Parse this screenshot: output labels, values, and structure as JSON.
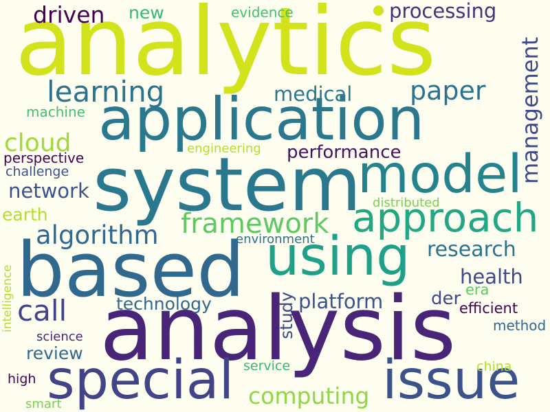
{
  "words": [
    {
      "id": "analytics",
      "text": "analytics",
      "color": "#d2e21b"
    },
    {
      "id": "analysis",
      "text": "analysis",
      "color": "#482576"
    },
    {
      "id": "system",
      "text": "system",
      "color": "#2a788e"
    },
    {
      "id": "application",
      "text": "application",
      "color": "#2a788e"
    },
    {
      "id": "based",
      "text": "based",
      "color": "#31688e"
    },
    {
      "id": "using",
      "text": "using",
      "color": "#1fa088"
    },
    {
      "id": "model",
      "text": "model",
      "color": "#25838e"
    },
    {
      "id": "approach",
      "text": "approach",
      "color": "#22a785"
    },
    {
      "id": "special",
      "text": "special",
      "color": "#414487"
    },
    {
      "id": "issue",
      "text": "issue",
      "color": "#3b528b"
    },
    {
      "id": "learning",
      "text": "learning",
      "color": "#2c738e"
    },
    {
      "id": "driven",
      "text": "driven",
      "color": "#440154"
    },
    {
      "id": "processing",
      "text": "processing",
      "color": "#46327e"
    },
    {
      "id": "paper",
      "text": "paper",
      "color": "#2c728e"
    },
    {
      "id": "management",
      "text": "management",
      "color": "#3e4989"
    },
    {
      "id": "medical",
      "text": "medical",
      "color": "#2a788e"
    },
    {
      "id": "cloud",
      "text": "cloud",
      "color": "#a0da39"
    },
    {
      "id": "performance",
      "text": "performance",
      "color": "#471063"
    },
    {
      "id": "framework",
      "text": "framework",
      "color": "#5ec962"
    },
    {
      "id": "algorithm",
      "text": "algorithm",
      "color": "#31688e"
    },
    {
      "id": "network",
      "text": "network",
      "color": "#3b528b"
    },
    {
      "id": "research",
      "text": "research",
      "color": "#2c728e"
    },
    {
      "id": "health",
      "text": "health",
      "color": "#3e4989"
    },
    {
      "id": "call",
      "text": "call",
      "color": "#414487"
    },
    {
      "id": "technology",
      "text": "technology",
      "color": "#31688e"
    },
    {
      "id": "platform",
      "text": "platform",
      "color": "#3b528b"
    },
    {
      "id": "study",
      "text": "study",
      "color": "#3e4989"
    },
    {
      "id": "computing",
      "text": "computing",
      "color": "#8fd744"
    },
    {
      "id": "review",
      "text": "review",
      "color": "#31688e"
    },
    {
      "id": "der",
      "text": "der",
      "color": "#3e4989"
    },
    {
      "id": "era",
      "text": "era",
      "color": "#5ec962"
    },
    {
      "id": "efficient",
      "text": "efficient",
      "color": "#440154"
    },
    {
      "id": "method",
      "text": "method",
      "color": "#31688e"
    },
    {
      "id": "new",
      "text": "new",
      "color": "#35b779"
    },
    {
      "id": "evidence",
      "text": "evidence",
      "color": "#44bf70"
    },
    {
      "id": "machine",
      "text": "machine",
      "color": "#44bf70"
    },
    {
      "id": "engineering",
      "text": "engineering",
      "color": "#b5de2b"
    },
    {
      "id": "perspective",
      "text": "perspective",
      "color": "#440154"
    },
    {
      "id": "challenge",
      "text": "challenge",
      "color": "#3b528b"
    },
    {
      "id": "earth",
      "text": "earth",
      "color": "#b5de2b"
    },
    {
      "id": "distributed",
      "text": "distributed",
      "color": "#7ad151"
    },
    {
      "id": "environment",
      "text": "environment",
      "color": "#2c728e"
    },
    {
      "id": "intelligence",
      "text": "intelligence",
      "color": "#b5de2b"
    },
    {
      "id": "science",
      "text": "science",
      "color": "#482576"
    },
    {
      "id": "service",
      "text": "service",
      "color": "#35b779"
    },
    {
      "id": "china",
      "text": "china",
      "color": "#b5de2b"
    },
    {
      "id": "high",
      "text": "high",
      "color": "#440154"
    },
    {
      "id": "smart",
      "text": "smart",
      "color": "#7ad151"
    }
  ],
  "colors": {
    "background": "#fdfdf0",
    "dot": "#d2e21b"
  }
}
